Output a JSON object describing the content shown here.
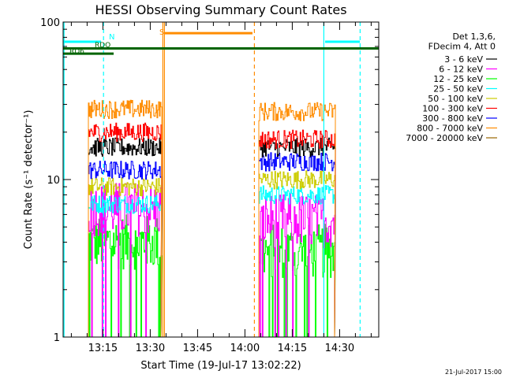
{
  "chart_data": {
    "type": "line",
    "title": "HESSI Observing Summary Count Rates",
    "xlabel": "Start Time (19-Jul-17 13:02:22)",
    "ylabel": "Count Rate (s⁻¹ detector⁻¹)",
    "yscale": "log",
    "ylim": [
      1,
      100
    ],
    "xlim_minutes_after_start": [
      0,
      100
    ],
    "y_tick_labels": [
      "1",
      "10",
      "100"
    ],
    "x_tick_labels": [
      "13:15",
      "13:30",
      "13:45",
      "14:00",
      "14:15",
      "14:30"
    ],
    "x_tick_minutes": [
      12.6,
      27.6,
      42.6,
      57.6,
      72.6,
      87.6
    ],
    "grid": false,
    "legend_position": "right",
    "legend_header": [
      "Det 1,3,6,",
      "FDecim 4, Att 0"
    ],
    "series": [
      {
        "name": "3 - 6 keV",
        "color": "#000000",
        "segments": [
          {
            "x": [
              8,
              31
            ],
            "y": 16
          },
          {
            "x": [
              62,
              86
            ],
            "y": 16
          }
        ]
      },
      {
        "name": "6 - 12 keV",
        "color": "#ff00ff",
        "segments": [
          {
            "x": [
              8,
              31
            ],
            "y": 6.5
          },
          {
            "x": [
              62,
              86
            ],
            "y": 5.5
          }
        ]
      },
      {
        "name": "12 - 25 keV",
        "color": "#00ff00",
        "segments": [
          {
            "x": [
              8,
              31
            ],
            "y": 4
          },
          {
            "x": [
              62,
              86
            ],
            "y": 3.5
          }
        ]
      },
      {
        "name": "25 - 50 keV",
        "color": "#00ffff",
        "segments": [
          {
            "x": [
              8,
              31
            ],
            "y": 7
          },
          {
            "x": [
              62,
              86
            ],
            "y": 8
          }
        ]
      },
      {
        "name": "50 - 100 keV",
        "color": "#cccc00",
        "segments": [
          {
            "x": [
              8,
              31
            ],
            "y": 9
          },
          {
            "x": [
              62,
              86
            ],
            "y": 10
          }
        ]
      },
      {
        "name": "100 - 300 keV",
        "color": "#ff0000",
        "segments": [
          {
            "x": [
              8,
              31
            ],
            "y": 20
          },
          {
            "x": [
              62,
              86
            ],
            "y": 18
          }
        ]
      },
      {
        "name": "300 - 800 keV",
        "color": "#0000ff",
        "segments": [
          {
            "x": [
              8,
              31
            ],
            "y": 11.5
          },
          {
            "x": [
              62,
              86
            ],
            "y": 13
          }
        ]
      },
      {
        "name": "800 - 7000 keV",
        "color": "#ff8c00",
        "segments": [
          {
            "x": [
              8,
              31
            ],
            "y": 28
          },
          {
            "x": [
              62,
              86
            ],
            "y": 27
          }
        ]
      },
      {
        "name": "7000 - 20000 keV",
        "color": "#996600",
        "segments": []
      }
    ],
    "annotations": [
      {
        "text": "N",
        "color": "#00ffff",
        "x": 14.5
      },
      {
        "text": "S",
        "color": "#ff8c00",
        "x": 31.5
      },
      {
        "text": "RDO",
        "color": "#006400",
        "x": 10
      },
      {
        "text": "RD6",
        "color": "#006400",
        "x": 2
      }
    ],
    "flag_lines": [
      {
        "color": "#00ffff",
        "y": 75,
        "x": [
          0,
          12
        ]
      },
      {
        "color": "#00ffff",
        "y": 75,
        "x": [
          83,
          94
        ]
      },
      {
        "color": "#ff8c00",
        "y": 85,
        "x": [
          32,
          60
        ]
      },
      {
        "color": "#006400",
        "y": 68,
        "x": [
          0,
          100
        ]
      },
      {
        "color": "#006400",
        "y": 63,
        "x": [
          0,
          16
        ]
      }
    ],
    "vertical_markers": [
      {
        "x": 0.3,
        "color": "#00ffff",
        "style": "solid"
      },
      {
        "x": 12.8,
        "color": "#00ffff",
        "style": "dashed"
      },
      {
        "x": 31.6,
        "color": "#ff8c00",
        "style": "solid"
      },
      {
        "x": 32.1,
        "color": "#ff8c00",
        "style": "solid"
      },
      {
        "x": 60.6,
        "color": "#ff8c00",
        "style": "dashed"
      },
      {
        "x": 82.6,
        "color": "#00ffff",
        "style": "solid"
      },
      {
        "x": 94.1,
        "color": "#00ffff",
        "style": "dashed"
      }
    ]
  },
  "footer": {
    "timestamp": "21-Jul-2017 15:00"
  }
}
